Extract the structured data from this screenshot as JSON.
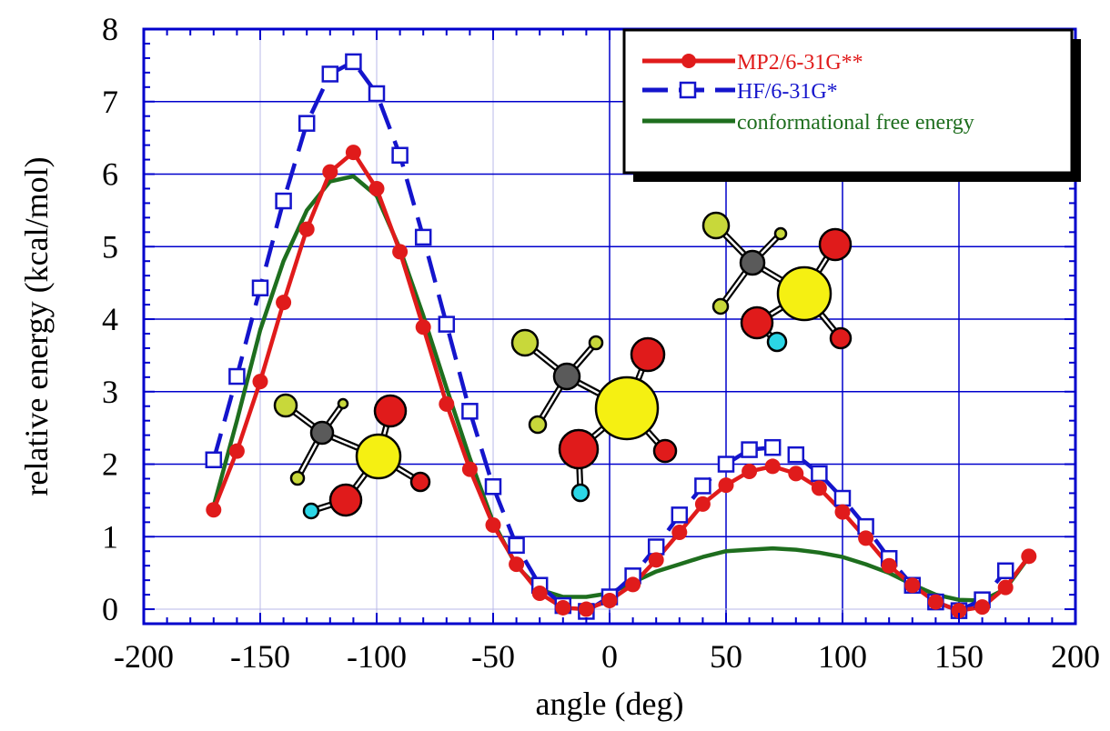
{
  "chart_data": {
    "type": "line",
    "title": "",
    "xlabel": "angle (deg)",
    "ylabel": "relative energy (kcal/mol)",
    "xlim": [
      -200,
      200
    ],
    "ylim": [
      -0.2,
      8
    ],
    "xticks": [
      -200,
      -150,
      -100,
      -50,
      0,
      50,
      100,
      150,
      200
    ],
    "yticks": [
      0,
      1,
      2,
      3,
      4,
      5,
      6,
      7,
      8
    ],
    "grid": true,
    "legend_position": "top-right",
    "colors": {
      "grid": "#0000cc",
      "axis": "#0000cc",
      "frame": "#0000cc"
    },
    "series": [
      {
        "name": "MP2/6-31G**",
        "color": "#e01b1b",
        "marker": "filled-circle",
        "line_style": "solid",
        "x": [
          -170,
          -160,
          -150,
          -140,
          -130,
          -120,
          -110,
          -100,
          -90,
          -80,
          -70,
          -60,
          -50,
          -40,
          -30,
          -20,
          -10,
          0,
          10,
          20,
          30,
          40,
          50,
          60,
          70,
          80,
          90,
          100,
          110,
          120,
          130,
          140,
          150,
          160,
          170,
          180
        ],
        "y": [
          1.37,
          2.18,
          3.14,
          4.23,
          5.24,
          6.03,
          6.3,
          5.8,
          4.93,
          3.89,
          2.83,
          1.93,
          1.16,
          0.62,
          0.22,
          0.02,
          0.0,
          0.12,
          0.34,
          0.68,
          1.06,
          1.45,
          1.71,
          1.9,
          1.97,
          1.87,
          1.67,
          1.34,
          0.98,
          0.6,
          0.33,
          0.1,
          -0.02,
          0.03,
          0.3,
          0.73
        ]
      },
      {
        "name": "HF/6-31G*",
        "color": "#1414cc",
        "marker": "open-square",
        "line_style": "dashed",
        "x": [
          -170,
          -160,
          -150,
          -140,
          -130,
          -120,
          -110,
          -100,
          -90,
          -80,
          -70,
          -60,
          -50,
          -40,
          -30,
          -20,
          -10,
          0,
          10,
          20,
          30,
          40,
          50,
          60,
          70,
          80,
          90,
          100,
          110,
          120,
          130,
          140,
          150,
          160,
          170
        ],
        "y": [
          2.06,
          3.21,
          4.43,
          5.63,
          6.7,
          7.38,
          7.55,
          7.11,
          6.26,
          5.13,
          3.93,
          2.73,
          1.69,
          0.88,
          0.33,
          0.05,
          -0.03,
          0.17,
          0.46,
          0.86,
          1.3,
          1.7,
          2.0,
          2.2,
          2.23,
          2.13,
          1.87,
          1.53,
          1.14,
          0.7,
          0.33,
          0.1,
          -0.02,
          0.13,
          0.53
        ]
      },
      {
        "name": "conformational free energy",
        "color": "#1e6e1e",
        "marker": "none",
        "line_style": "solid",
        "x": [
          -170,
          -160,
          -150,
          -140,
          -130,
          -120,
          -110,
          -100,
          -90,
          -80,
          -70,
          -60,
          -50,
          -40,
          -30,
          -20,
          -10,
          0,
          10,
          20,
          30,
          40,
          50,
          60,
          70,
          80,
          90,
          100,
          110,
          120,
          130,
          140,
          150,
          160,
          170,
          180
        ],
        "y": [
          1.42,
          2.6,
          3.85,
          4.8,
          5.5,
          5.9,
          5.97,
          5.7,
          4.97,
          4.05,
          3.05,
          2.08,
          1.2,
          0.6,
          0.27,
          0.17,
          0.17,
          0.22,
          0.37,
          0.52,
          0.62,
          0.72,
          0.8,
          0.82,
          0.84,
          0.82,
          0.78,
          0.72,
          0.62,
          0.5,
          0.34,
          0.2,
          0.13,
          0.12,
          0.28,
          0.72
        ]
      }
    ],
    "molecule_insets": [
      {
        "name": "molecule-inset-left",
        "atoms": [
          {
            "type": "sulfur",
            "color": "#f5f012"
          },
          {
            "type": "carbon",
            "color": "#5a5a5a"
          },
          {
            "type": "oxygen",
            "color": "#e01b1b"
          },
          {
            "type": "oxygen",
            "color": "#e01b1b"
          },
          {
            "type": "oxygen",
            "color": "#e01b1b"
          },
          {
            "type": "fluorine",
            "color": "#c8d83a"
          },
          {
            "type": "hydrogen",
            "color": "#2bd6e6"
          }
        ]
      },
      {
        "name": "molecule-inset-middle",
        "atoms": [
          {
            "type": "sulfur",
            "color": "#f5f012"
          },
          {
            "type": "carbon",
            "color": "#5a5a5a"
          },
          {
            "type": "oxygen",
            "color": "#e01b1b"
          },
          {
            "type": "fluorine",
            "color": "#c8d83a"
          },
          {
            "type": "hydrogen",
            "color": "#2bd6e6"
          }
        ]
      },
      {
        "name": "molecule-inset-right",
        "atoms": [
          {
            "type": "sulfur",
            "color": "#f5f012"
          },
          {
            "type": "carbon",
            "color": "#5a5a5a"
          },
          {
            "type": "oxygen",
            "color": "#e01b1b"
          },
          {
            "type": "fluorine",
            "color": "#c8d83a"
          },
          {
            "type": "hydrogen",
            "color": "#2bd6e6"
          }
        ]
      }
    ]
  }
}
